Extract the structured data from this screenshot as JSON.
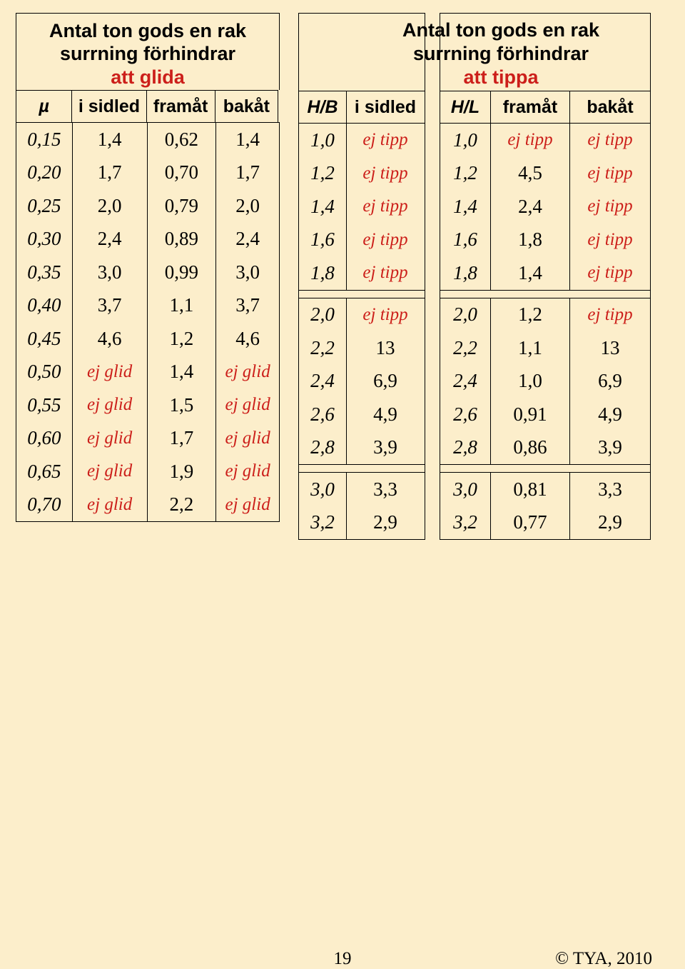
{
  "left": {
    "title_l1": "Antal ton gods en rak",
    "title_l2": "surrning förhindrar",
    "title_l3": "att glida",
    "headers": {
      "c0": "µ",
      "c1": "i sidled",
      "c2": "framåt",
      "c3": "bakåt"
    },
    "rows": [
      {
        "c0": "0,15",
        "c1": "1,4",
        "c2": "0,62",
        "c3": "1,4"
      },
      {
        "c0": "0,20",
        "c1": "1,7",
        "c2": "0,70",
        "c3": "1,7"
      },
      {
        "c0": "0,25",
        "c1": "2,0",
        "c2": "0,79",
        "c3": "2,0"
      },
      {
        "c0": "0,30",
        "c1": "2,4",
        "c2": "0,89",
        "c3": "2,4"
      },
      {
        "c0": "0,35",
        "c1": "3,0",
        "c2": "0,99",
        "c3": "3,0"
      },
      {
        "c0": "0,40",
        "c1": "3,7",
        "c2": "1,1",
        "c3": "3,7"
      },
      {
        "c0": "0,45",
        "c1": "4,6",
        "c2": "1,2",
        "c3": "4,6"
      },
      {
        "c0": "0,50",
        "c1": "ej glid",
        "c2": "1,4",
        "c3": "ej glid",
        "ej1": true,
        "ej3": true
      },
      {
        "c0": "0,55",
        "c1": "ej glid",
        "c2": "1,5",
        "c3": "ej glid",
        "ej1": true,
        "ej3": true
      },
      {
        "c0": "0,60",
        "c1": "ej glid",
        "c2": "1,7",
        "c3": "ej glid",
        "ej1": true,
        "ej3": true
      },
      {
        "c0": "0,65",
        "c1": "ej glid",
        "c2": "1,9",
        "c3": "ej glid",
        "ej1": true,
        "ej3": true
      },
      {
        "c0": "0,70",
        "c1": "ej glid",
        "c2": "2,2",
        "c3": "ej glid",
        "ej1": true,
        "ej3": true
      }
    ]
  },
  "right_title": {
    "l1": "Antal ton gods en rak",
    "l2": "surrning förhindrar",
    "l3": "att tippa"
  },
  "mid": {
    "headers": {
      "c0": "H/B",
      "c1": "i sidled"
    },
    "rows": [
      {
        "c0": "1,0",
        "c1": "ej tipp",
        "ej1": true
      },
      {
        "c0": "1,2",
        "c1": "ej tipp",
        "ej1": true
      },
      {
        "c0": "1,4",
        "c1": "ej tipp",
        "ej1": true
      },
      {
        "c0": "1,6",
        "c1": "ej tipp",
        "ej1": true
      },
      {
        "c0": "1,8",
        "c1": "ej tipp",
        "ej1": true
      },
      {
        "c0": "2,0",
        "c1": "ej tipp",
        "ej1": true
      },
      {
        "c0": "2,2",
        "c1": "13"
      },
      {
        "c0": "2,4",
        "c1": "6,9"
      },
      {
        "c0": "2,6",
        "c1": "4,9"
      },
      {
        "c0": "2,8",
        "c1": "3,9"
      },
      {
        "c0": "3,0",
        "c1": "3,3"
      },
      {
        "c0": "3,2",
        "c1": "2,9"
      }
    ],
    "gaps_after": [
      4,
      9
    ]
  },
  "rt": {
    "headers": {
      "c0": "H/L",
      "c1": "framåt",
      "c2": "bakåt"
    },
    "rows": [
      {
        "c0": "1,0",
        "c1": "ej tipp",
        "c2": "ej tipp",
        "ej1": true,
        "ej2": true
      },
      {
        "c0": "1,2",
        "c1": "4,5",
        "c2": "ej tipp",
        "ej2": true
      },
      {
        "c0": "1,4",
        "c1": "2,4",
        "c2": "ej tipp",
        "ej2": true
      },
      {
        "c0": "1,6",
        "c1": "1,8",
        "c2": "ej tipp",
        "ej2": true
      },
      {
        "c0": "1,8",
        "c1": "1,4",
        "c2": "ej tipp",
        "ej2": true
      },
      {
        "c0": "2,0",
        "c1": "1,2",
        "c2": "ej tipp",
        "ej2": true
      },
      {
        "c0": "2,2",
        "c1": "1,1",
        "c2": "13"
      },
      {
        "c0": "2,4",
        "c1": "1,0",
        "c2": "6,9"
      },
      {
        "c0": "2,6",
        "c1": "0,91",
        "c2": "4,9"
      },
      {
        "c0": "2,8",
        "c1": "0,86",
        "c2": "3,9"
      },
      {
        "c0": "3,0",
        "c1": "0,81",
        "c2": "3,3"
      },
      {
        "c0": "3,2",
        "c1": "0,77",
        "c2": "2,9"
      }
    ],
    "gaps_after": [
      4,
      9
    ]
  },
  "footer": {
    "page": "19",
    "copyright": "© TYA, 2010"
  },
  "colors": {
    "background": "#fceecb",
    "red": "#cc1f1a",
    "border": "#000000",
    "text": "#000000"
  }
}
